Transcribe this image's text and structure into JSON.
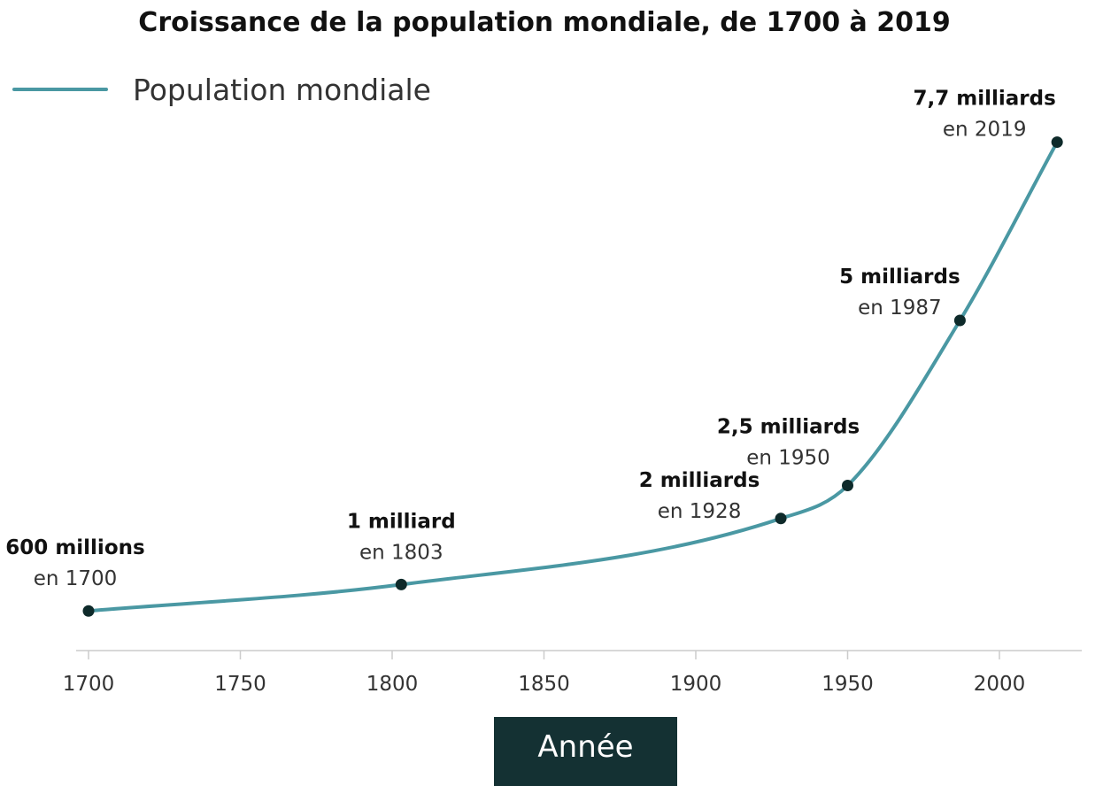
{
  "chart_data": {
    "type": "line",
    "title": "Croissance de la population mondiale, de 1700 à 2019",
    "xlabel": "Année",
    "ylabel": "",
    "legend": {
      "label": "Population mondiale",
      "position": "top-left"
    },
    "xlim": [
      1700,
      2030
    ],
    "x_ticks": [
      1700,
      1750,
      1800,
      1850,
      1900,
      1950,
      2000
    ],
    "x_tick_labels": [
      "1700",
      "1750",
      "1800",
      "1850",
      "1900",
      "1950",
      "2000"
    ],
    "ylim": [
      0,
      8.5
    ],
    "y_unit": "milliards",
    "grid": false,
    "series": [
      {
        "name": "Population mondiale",
        "x": [
          1700,
          1803,
          1928,
          1950,
          1987,
          2019
        ],
        "y": [
          0.6,
          1.0,
          2.0,
          2.5,
          5.0,
          7.7
        ]
      }
    ],
    "annotations": [
      {
        "x": 1700,
        "value": "600 millions",
        "year": "en 1700"
      },
      {
        "x": 1803,
        "value": "1 milliard",
        "year": "en 1803"
      },
      {
        "x": 1928,
        "value": "2 milliards",
        "year": "en 1928"
      },
      {
        "x": 1950,
        "value": "2,5 milliards",
        "year": "en 1950"
      },
      {
        "x": 1987,
        "value": "5 milliards",
        "year": "en 1987"
      },
      {
        "x": 2019,
        "value": "7,7 milliards",
        "year": "en 2019"
      }
    ]
  },
  "colors": {
    "line": "#4a98a3",
    "point": "#0e2a2a",
    "axis_title_bg": "#143133",
    "axis": "#cccccc"
  }
}
